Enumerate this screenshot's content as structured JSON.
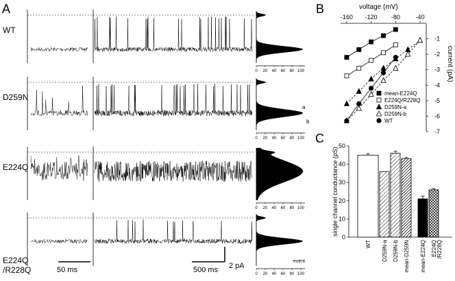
{
  "panels": {
    "A": "A",
    "B": "B",
    "C": "C"
  },
  "traces": {
    "rows": [
      {
        "label": "WT"
      },
      {
        "label": "D259N"
      },
      {
        "label": "E224Q"
      },
      {
        "label": "E224Q\n/R228Q"
      }
    ],
    "histogram_ticks": [
      "0",
      "20",
      "40",
      "60",
      "80",
      "100"
    ],
    "histogram_axis_label": "event",
    "annotations": {
      "a": "a",
      "b": "b"
    },
    "scalebars": {
      "fast": "50 ms",
      "slow": "500 ms",
      "amplitude": "2 pA"
    }
  },
  "chart_data": [
    {
      "type": "line",
      "panel": "B",
      "xlabel": "voltage (mV)",
      "ylabel": "current (pA)",
      "xlim": [
        -170,
        -30
      ],
      "ylim": [
        -7,
        0
      ],
      "xticks": [
        "-160",
        "-120",
        "-80",
        "-40"
      ],
      "yticks": [
        "-1",
        "-2",
        "-3",
        "-4",
        "-5",
        "-6",
        "-7"
      ],
      "series": [
        {
          "name": "mean-E224Q",
          "marker": "filled-square",
          "line": "solid",
          "x": [
            -160,
            -140,
            -120,
            -100,
            -80
          ],
          "y": [
            -2.2,
            -1.7,
            -1.2,
            -0.8,
            -0.4
          ]
        },
        {
          "name": "E224Q/R228Q",
          "marker": "open-square",
          "line": "solid",
          "x": [
            -160,
            -140,
            -120,
            -100,
            -80
          ],
          "y": [
            -3.4,
            -2.9,
            -2.4,
            -1.9,
            -1.4
          ]
        },
        {
          "name": "D259N-a",
          "marker": "filled-triangle",
          "line": "dashed",
          "x": [
            -160,
            -140,
            -120,
            -100,
            -80,
            -60,
            -40
          ],
          "y": [
            -5.2,
            -4.4,
            -3.6,
            -2.9,
            -2.3,
            -1.7,
            -1.1
          ]
        },
        {
          "name": "D259N-b",
          "marker": "open-triangle",
          "line": "dashed",
          "x": [
            -160,
            -140,
            -120,
            -100,
            -80,
            -60,
            -40
          ],
          "y": [
            -6.3,
            -5.5,
            -4.6,
            -3.7,
            -2.9,
            -2.0,
            -1.1
          ]
        },
        {
          "name": "WT",
          "marker": "filled-circle",
          "line": "solid",
          "x": [
            -160,
            -140,
            -120,
            -100,
            -80
          ],
          "y": [
            -6.3,
            -5.2,
            -4.2,
            -3.2,
            -2.2
          ]
        }
      ]
    },
    {
      "type": "bar",
      "panel": "C",
      "ylabel": "single channel conductance (pS)",
      "ylim": [
        0,
        50
      ],
      "yticks": [
        "0",
        "10",
        "20",
        "30",
        "40",
        "50"
      ],
      "groups": [
        {
          "label": "WT",
          "bars": [
            {
              "name": "WT",
              "value": 45,
              "err": 0.8,
              "fill": "white"
            }
          ]
        },
        {
          "label": "D259N",
          "bars": [
            {
              "name": "D259N-a",
              "value": 36,
              "err": 0,
              "fill": "hatch-light"
            },
            {
              "name": "D259N-b",
              "value": 46,
              "err": 1.2,
              "fill": "hatch-light"
            },
            {
              "name": "mean-D259N",
              "value": 43,
              "err": 0.7,
              "fill": "hatch-dark"
            }
          ]
        },
        {
          "label": "E224Q",
          "bars": [
            {
              "name": "mean-E224Q",
              "value": 21,
              "err": 1.5,
              "fill": "black"
            },
            {
              "name": "E224Q\n/R228Q",
              "value": 26,
              "err": 0.7,
              "fill": "crosshatch"
            }
          ]
        }
      ]
    }
  ]
}
